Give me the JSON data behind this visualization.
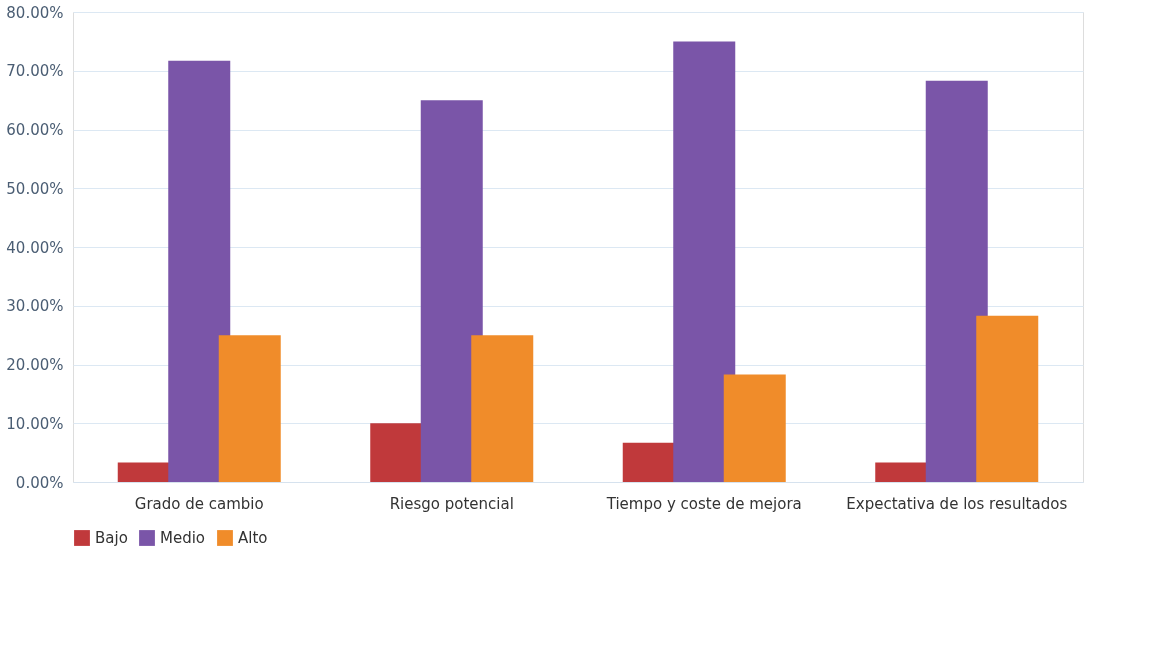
{
  "chart_data": {
    "type": "bar",
    "categories": [
      "Grado de cambio",
      "Riesgo potencial",
      "Tiempo y coste de mejora",
      "Expectativa de los resultados"
    ],
    "series": [
      {
        "name": "Bajo",
        "color": "#c0393b",
        "values": [
          3.3,
          10,
          6.7,
          3.3
        ]
      },
      {
        "name": "Medio",
        "color": "#7a55a8",
        "values": [
          71.7,
          65,
          75,
          68.3
        ]
      },
      {
        "name": "Alto",
        "color": "#f08c2a",
        "values": [
          25,
          25,
          18.3,
          28.3
        ]
      }
    ],
    "ylim": [
      0,
      80
    ],
    "yticks": [
      {
        "value": 0,
        "label": "0.00%"
      },
      {
        "value": 10,
        "label": "10.00%"
      },
      {
        "value": 20,
        "label": "20.00%"
      },
      {
        "value": 30,
        "label": "30.00%"
      },
      {
        "value": 40,
        "label": "40.00%"
      },
      {
        "value": 50,
        "label": "50.00%"
      },
      {
        "value": 60,
        "label": "60.00%"
      },
      {
        "value": 70,
        "label": "70.00%"
      },
      {
        "value": 80,
        "label": "80.00%"
      }
    ],
    "grid": "y",
    "legend": "bottom"
  }
}
